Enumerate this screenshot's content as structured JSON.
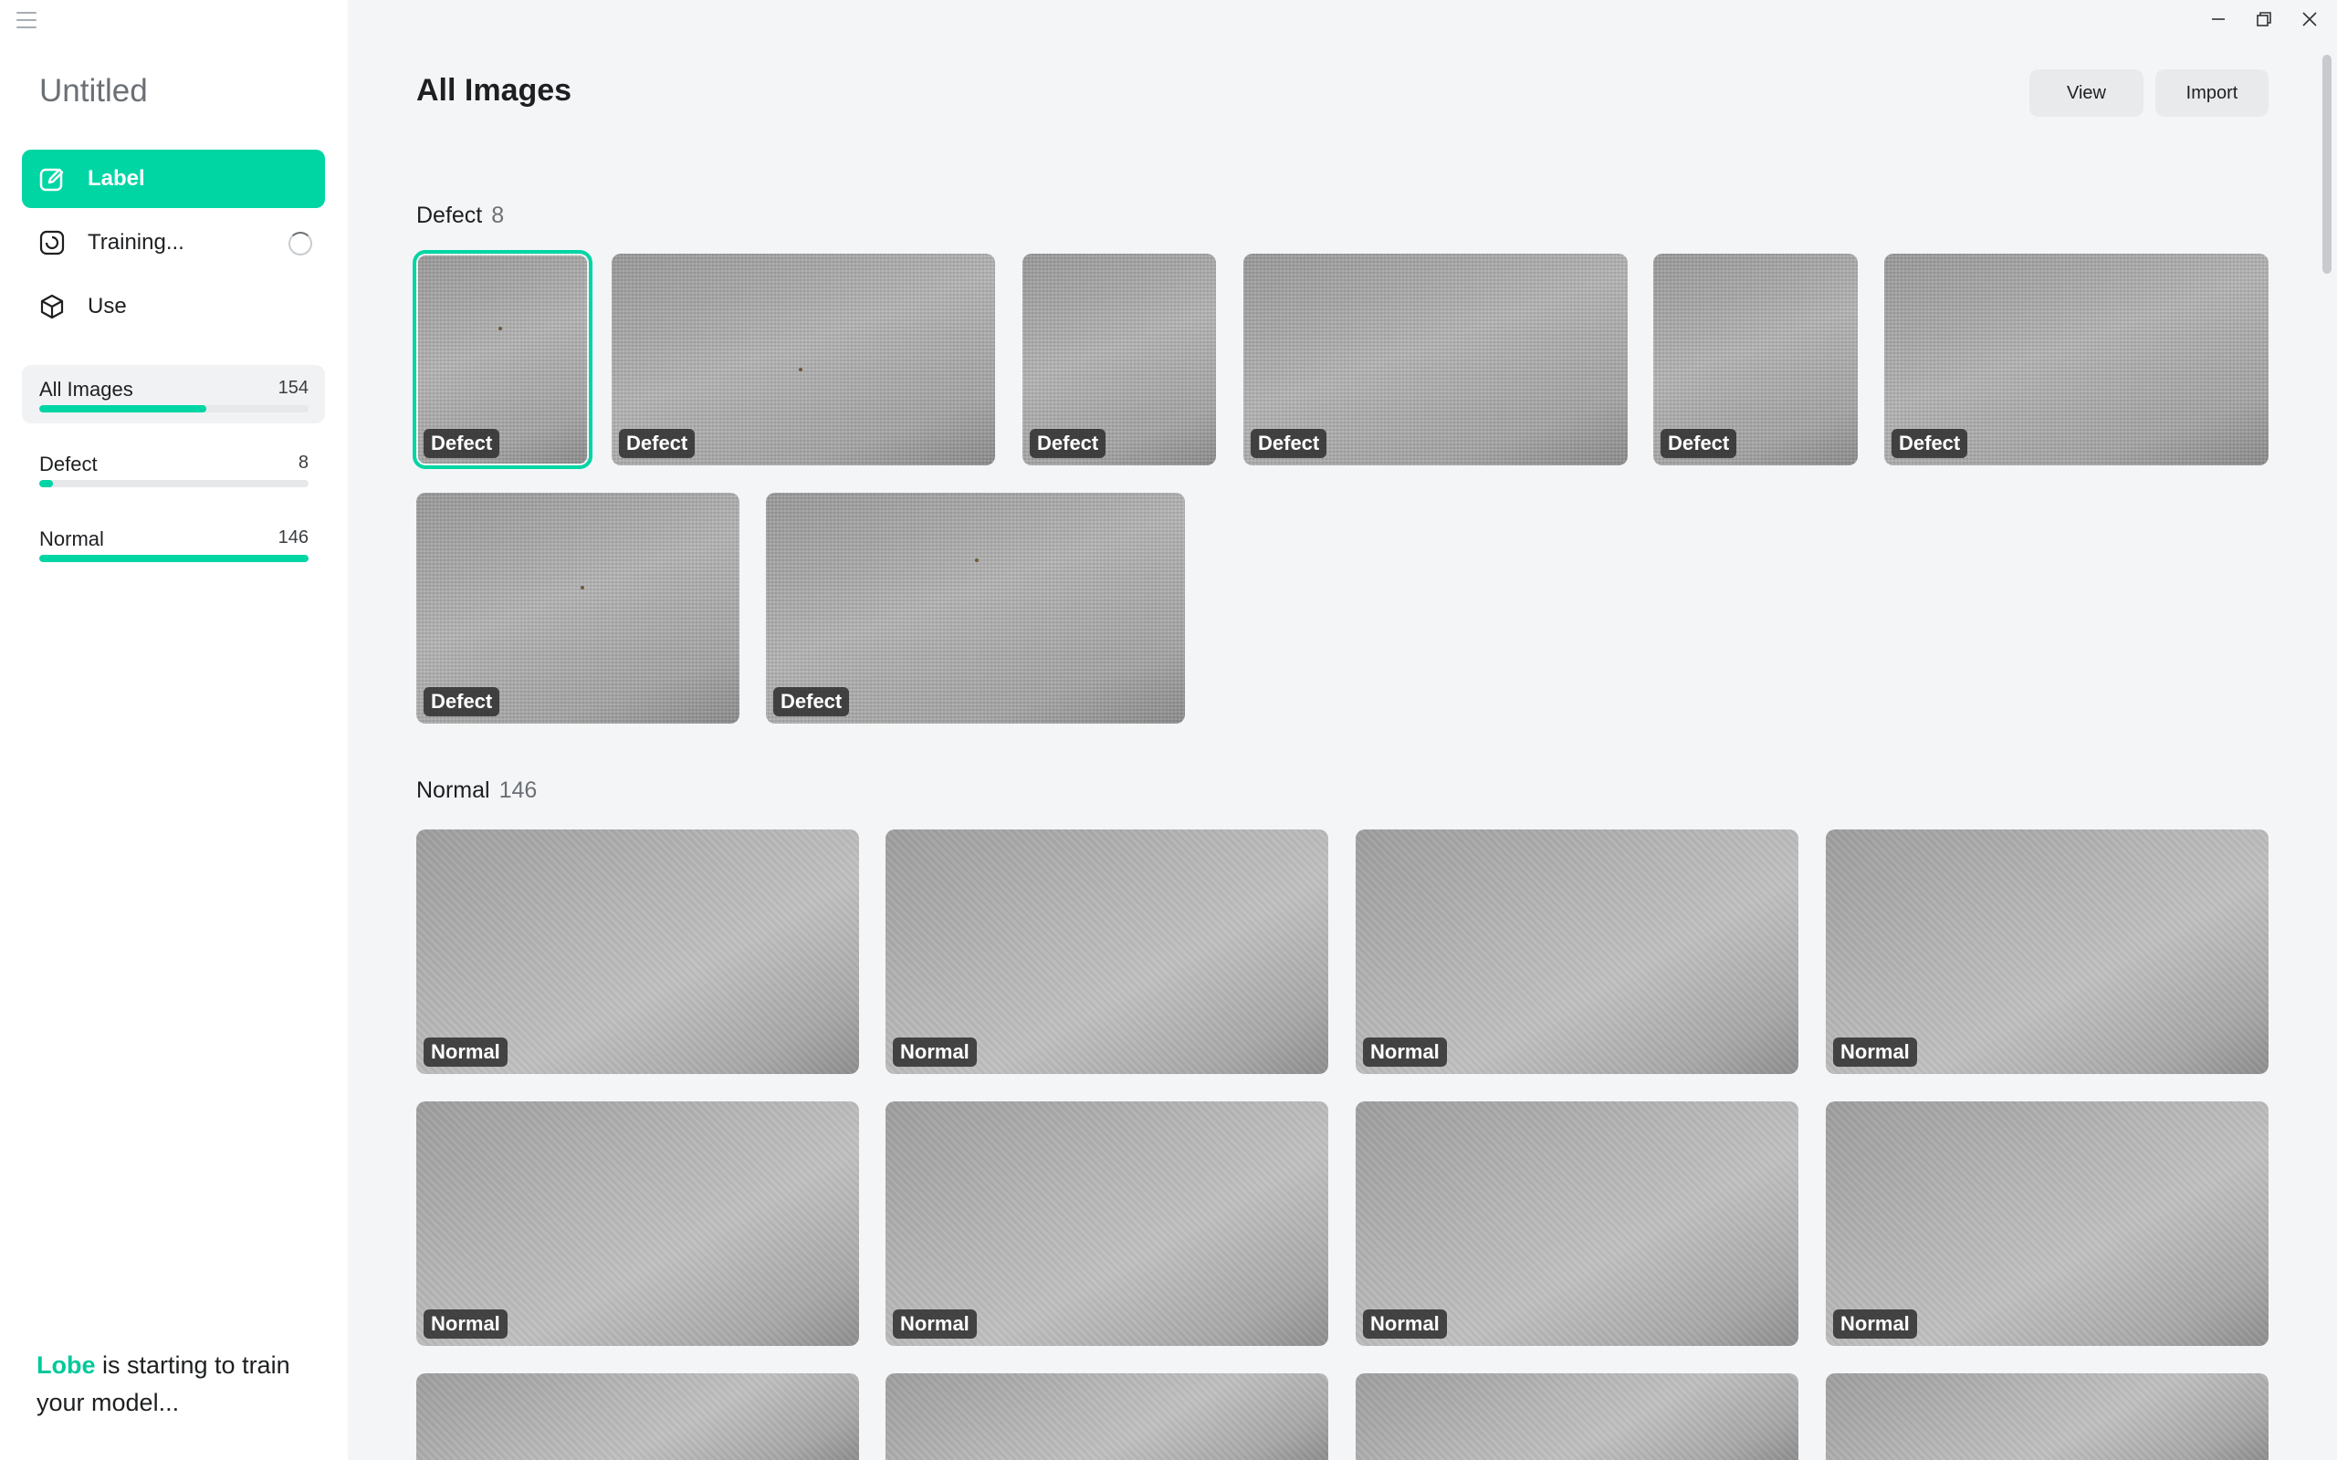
{
  "sidebar": {
    "project_title": "Untitled",
    "nav": [
      {
        "label": "Label",
        "icon": "pencil-square-icon"
      },
      {
        "label": "Training...",
        "icon": "timer-icon"
      },
      {
        "label": "Use",
        "icon": "cube-icon"
      }
    ],
    "categories": [
      {
        "label": "All Images",
        "count": "154",
        "fraction": 0.62
      },
      {
        "label": "Defect",
        "count": "8",
        "fraction": 0.05
      },
      {
        "label": "Normal",
        "count": "146",
        "fraction": 1.0
      }
    ],
    "status_brand": "Lobe",
    "status_text": " is starting to train your model..."
  },
  "header": {
    "title": "All Images",
    "view_label": "View",
    "import_label": "Import"
  },
  "sections": {
    "defect": {
      "name": "Defect",
      "count": "8"
    },
    "normal": {
      "name": "Normal",
      "count": "146"
    }
  },
  "tags": {
    "defect": "Defect",
    "normal": "Normal"
  },
  "colors": {
    "accent": "#00d5a4",
    "background": "#f4f5f7"
  }
}
